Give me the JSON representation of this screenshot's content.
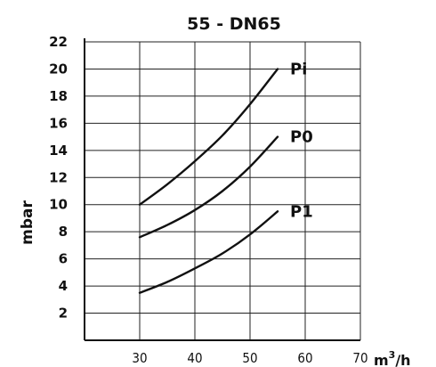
{
  "chart_data": {
    "type": "line",
    "title": "55 - DN65",
    "ylabel": "mbar",
    "xlabel": {
      "base": "m",
      "sup": "3",
      "rest": "/h"
    },
    "xlim": [
      20,
      70
    ],
    "ylim": [
      0,
      22
    ],
    "xticks": [
      30,
      40,
      50,
      60,
      70
    ],
    "yticks": [
      2,
      4,
      6,
      8,
      10,
      12,
      14,
      16,
      18,
      20,
      22
    ],
    "grid": true,
    "series": [
      {
        "name": "Pi",
        "x": [
          30,
          35,
          40,
          45,
          50,
          55
        ],
        "y": [
          10.0,
          11.5,
          13.2,
          15.1,
          17.4,
          20.0
        ]
      },
      {
        "name": "P0",
        "x": [
          30,
          35,
          40,
          45,
          50,
          55
        ],
        "y": [
          7.6,
          8.5,
          9.6,
          11.0,
          12.8,
          15.0
        ]
      },
      {
        "name": "P1",
        "x": [
          30,
          35,
          40,
          45,
          50,
          55
        ],
        "y": [
          3.5,
          4.3,
          5.3,
          6.4,
          7.8,
          9.5
        ]
      }
    ]
  }
}
